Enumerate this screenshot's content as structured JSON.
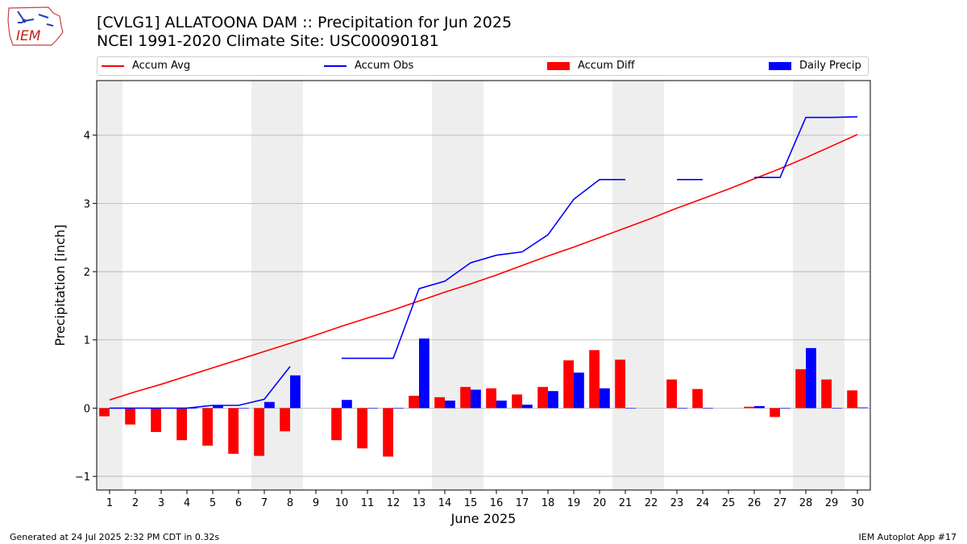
{
  "header": {
    "title_line1": "[CVLG1] ALLATOONA DAM :: Precipitation for Jun 2025",
    "title_line2": "NCEI 1991-2020 Climate Site: USC00090181",
    "logo_text": "IEM"
  },
  "footer": {
    "generated": "Generated at 24 Jul 2025 2:32 PM CDT in 0.32s",
    "app": "IEM Autoplot App #17"
  },
  "colors": {
    "accum_avg": "#ff0000",
    "accum_obs": "#0000ff",
    "accum_diff": "#ff0000",
    "daily_precip": "#0000ff",
    "weekend_shade": "#eeeeee",
    "grid": "#b0b0b0"
  },
  "chart_data": {
    "type": "bar",
    "xlabel": "June 2025",
    "ylabel": "Precipitation [inch]",
    "ylim": [
      -1.2,
      4.8
    ],
    "yticks": [
      -1,
      0,
      1,
      2,
      3,
      4
    ],
    "grid": "horizontal",
    "legend_placement": "top",
    "days": [
      1,
      2,
      3,
      4,
      5,
      6,
      7,
      8,
      9,
      10,
      11,
      12,
      13,
      14,
      15,
      16,
      17,
      18,
      19,
      20,
      21,
      22,
      23,
      24,
      25,
      26,
      27,
      28,
      29,
      30
    ],
    "shaded_days": [
      1,
      7,
      8,
      14,
      15,
      21,
      22,
      28,
      29
    ],
    "legend": [
      {
        "name": "Accum Avg",
        "kind": "line",
        "color": "#ff0000"
      },
      {
        "name": "Accum Obs",
        "kind": "line",
        "color": "#0000ff"
      },
      {
        "name": "Accum Diff",
        "kind": "bar",
        "color": "#ff0000"
      },
      {
        "name": "Daily Precip",
        "kind": "bar",
        "color": "#0000ff"
      }
    ],
    "series": [
      {
        "name": "Accum Avg",
        "type": "line",
        "values": [
          0.12,
          0.24,
          0.35,
          0.47,
          0.59,
          0.71,
          0.83,
          0.95,
          1.07,
          1.2,
          1.32,
          1.44,
          1.57,
          1.7,
          1.82,
          1.95,
          2.09,
          2.23,
          2.36,
          2.5,
          2.64,
          2.78,
          2.93,
          3.07,
          3.21,
          3.36,
          3.51,
          3.67,
          3.84,
          4.01
        ]
      },
      {
        "name": "Accum Obs",
        "type": "line",
        "values": [
          0.0,
          0.0,
          0.0,
          0.0,
          0.04,
          0.04,
          0.13,
          0.61,
          null,
          0.73,
          0.73,
          0.73,
          1.75,
          1.86,
          2.13,
          2.24,
          2.29,
          2.54,
          3.06,
          3.35,
          3.35,
          null,
          3.35,
          3.35,
          null,
          3.38,
          3.38,
          4.26,
          4.26,
          4.27
        ]
      },
      {
        "name": "Accum Diff",
        "type": "bar",
        "values": [
          -0.12,
          -0.24,
          -0.35,
          -0.47,
          -0.55,
          -0.67,
          -0.7,
          -0.34,
          null,
          -0.47,
          -0.59,
          -0.71,
          0.18,
          0.16,
          0.31,
          0.29,
          0.2,
          0.31,
          0.7,
          0.85,
          0.71,
          null,
          0.42,
          0.28,
          null,
          0.02,
          -0.13,
          0.57,
          0.42,
          0.26
        ]
      },
      {
        "name": "Daily Precip",
        "type": "bar",
        "values": [
          0.0,
          0.0,
          0.0,
          0.0,
          0.04,
          0.0,
          0.09,
          0.48,
          null,
          0.12,
          0.0,
          0.0,
          1.02,
          0.11,
          0.27,
          0.11,
          0.05,
          0.25,
          0.52,
          0.29,
          0.0,
          null,
          0.0,
          0.0,
          null,
          0.03,
          0.0,
          0.88,
          0.0,
          0.01
        ]
      }
    ]
  }
}
